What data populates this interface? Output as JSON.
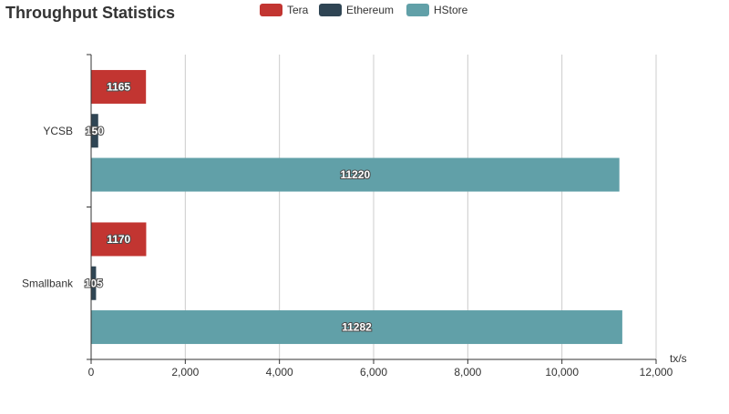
{
  "chart_data": {
    "type": "bar",
    "orientation": "horizontal",
    "title": "Throughput Statistics",
    "categories": [
      "YCSB",
      "Smallbank"
    ],
    "series": [
      {
        "name": "Tera",
        "color": "#c23531",
        "values": [
          1165,
          1170
        ]
      },
      {
        "name": "Ethereum",
        "color": "#2f4554",
        "values": [
          150,
          105
        ]
      },
      {
        "name": "HStore",
        "color": "#61a0a8",
        "values": [
          11220,
          11282
        ]
      }
    ],
    "x_axis": {
      "unit": "tx/s",
      "range": [
        0,
        12000
      ],
      "ticks": [
        0,
        2000,
        4000,
        6000,
        8000,
        10000,
        12000
      ],
      "tick_labels": [
        "0",
        "2,000",
        "4,000",
        "6,000",
        "8,000",
        "10,000",
        "12,000"
      ]
    },
    "grid": "vertical",
    "legend_position": "top-center",
    "data_labels": true
  }
}
